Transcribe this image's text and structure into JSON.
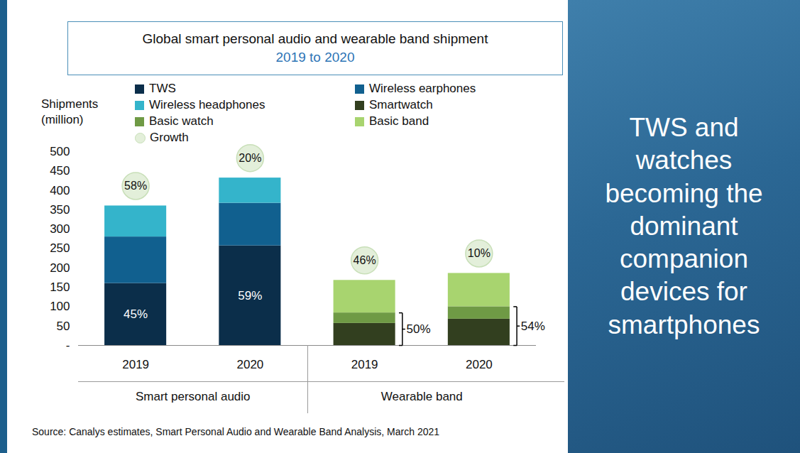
{
  "chart_data": {
    "type": "bar",
    "title": "Global smart personal audio and wearable band shipment",
    "subtitle": "2019 to 2020",
    "ylabel": "Shipments (million)",
    "categories": [
      "2019",
      "2020",
      "2019",
      "2020"
    ],
    "group_labels": [
      "Smart personal audio",
      "Smart personal audio",
      "Wearable band",
      "Wearable band"
    ],
    "series": [
      {
        "name": "TWS",
        "color": "#0b2e4a",
        "values": [
          160,
          257,
          null,
          null
        ]
      },
      {
        "name": "Wireless earphones",
        "color": "#11608f",
        "values": [
          120,
          110,
          null,
          null
        ]
      },
      {
        "name": "Wireless headphones",
        "color": "#34b4cb",
        "values": [
          80,
          65,
          null,
          null
        ]
      },
      {
        "name": "Smartwatch",
        "color": "#323f1f",
        "values": [
          null,
          null,
          57,
          68
        ]
      },
      {
        "name": "Basic watch",
        "color": "#6f9a45",
        "values": [
          null,
          null,
          27,
          32
        ]
      },
      {
        "name": "Basic band",
        "color": "#a8d46f",
        "values": [
          null,
          null,
          84,
          86
        ]
      }
    ],
    "growth": {
      "name": "Growth",
      "color": "#e3efda",
      "labels": [
        "58%",
        "20%",
        "46%",
        "10%"
      ]
    },
    "share_labels": {
      "series": "TWS",
      "labels": [
        "45%",
        "59%",
        null,
        null
      ]
    },
    "bracket": {
      "series": [
        "Smartwatch",
        "Basic watch"
      ],
      "labels": [
        null,
        null,
        "50%",
        "54%"
      ]
    },
    "stacked": true,
    "legend": "top",
    "grid": false,
    "ylim": [
      0,
      500
    ],
    "yticks": [
      {
        "value": 0,
        "label": "-"
      },
      50,
      100,
      150,
      200,
      250,
      300,
      350,
      400,
      450,
      500
    ],
    "source": "Source: Canalys estimates, Smart Personal Audio and Wearable Band Analysis, March 2021"
  },
  "side_panel": {
    "text": "TWS and watches becoming the dominant companion devices for smartphones"
  }
}
